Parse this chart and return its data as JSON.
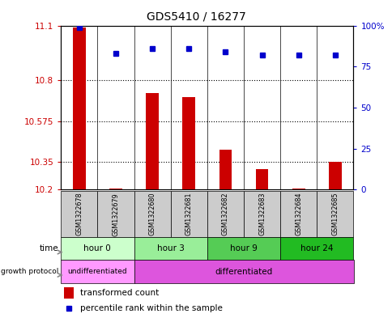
{
  "title": "GDS5410 / 16277",
  "samples": [
    "GSM1322678",
    "GSM1322679",
    "GSM1322680",
    "GSM1322681",
    "GSM1322682",
    "GSM1322683",
    "GSM1322684",
    "GSM1322685"
  ],
  "transformed_count": [
    11.09,
    10.205,
    10.73,
    10.71,
    10.42,
    10.31,
    10.205,
    10.35
  ],
  "percentile_rank": [
    99,
    83,
    86,
    86,
    84,
    82,
    82,
    82
  ],
  "ylim_left": [
    10.2,
    11.1
  ],
  "ylim_right": [
    0,
    100
  ],
  "yticks_left": [
    10.2,
    10.35,
    10.575,
    10.8,
    11.1
  ],
  "yticks_right": [
    0,
    25,
    50,
    75,
    100
  ],
  "ytick_labels_left": [
    "10.2",
    "10.35",
    "10.575",
    "10.8",
    "11.1"
  ],
  "ytick_labels_right": [
    "0",
    "25",
    "50",
    "75",
    "100%"
  ],
  "dotted_lines": [
    10.8,
    10.575,
    10.35
  ],
  "time_colors": [
    "#ccffcc",
    "#99ee99",
    "#55cc55",
    "#22bb22"
  ],
  "time_groups": [
    {
      "label": "hour 0",
      "start": 0,
      "end": 1
    },
    {
      "label": "hour 3",
      "start": 2,
      "end": 3
    },
    {
      "label": "hour 9",
      "start": 4,
      "end": 5
    },
    {
      "label": "hour 24",
      "start": 6,
      "end": 7
    }
  ],
  "growth_colors": [
    "#ff99ff",
    "#dd55dd"
  ],
  "growth_groups": [
    {
      "label": "undifferentiated",
      "start": 0,
      "end": 1
    },
    {
      "label": "differentiated",
      "start": 2,
      "end": 7
    }
  ],
  "bar_color": "#cc0000",
  "dot_color": "#0000cc",
  "bar_width": 0.35,
  "sample_label_row_color": "#cccccc",
  "axis_color_left": "#cc0000",
  "axis_color_right": "#0000cc",
  "legend_bar_color": "#cc0000",
  "legend_dot_color": "#0000cc"
}
